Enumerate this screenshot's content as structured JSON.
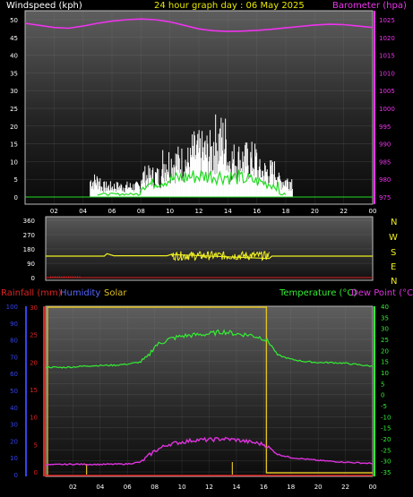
{
  "header": {
    "title": "24 hour graph day : 06 May 2025",
    "left_label": "Windspeed (kph)",
    "right_label": "Barometer (hpa)"
  },
  "bottom_header": {
    "rain_label": "Rainfall (mm)",
    "humidity_label": "Humidity",
    "solar_label": "Solar",
    "temp_label": "Temperature (°C)",
    "dew_label": "Dew Point (°C)"
  },
  "colors": {
    "wind": "#ffffff",
    "gust": "#22dd22",
    "barometer": "#ee33ee",
    "direction": "#eeee22",
    "rain": "#dd2222",
    "humidity": "#5566ff",
    "solar": "#e0c020",
    "temperature": "#33ee33",
    "dew": "#dd33dd",
    "title": "#e8e800",
    "axis_blue": "#3344ee"
  },
  "compass": [
    "N",
    "W",
    "S",
    "E",
    "N"
  ],
  "chart_data": [
    {
      "type": "line",
      "name": "wind-barometer",
      "x_ticks": [
        "02",
        "04",
        "06",
        "08",
        "10",
        "12",
        "14",
        "16",
        "18",
        "20",
        "22",
        "00"
      ],
      "y_left": {
        "label": "Windspeed (kph)",
        "ticks": [
          0,
          5,
          10,
          15,
          20,
          25,
          30,
          35,
          40,
          45,
          50
        ],
        "range": [
          0,
          50
        ]
      },
      "y_right": {
        "label": "Barometer (hpa)",
        "ticks": [
          975,
          980,
          985,
          990,
          995,
          1000,
          1005,
          1010,
          1015,
          1020,
          1025
        ],
        "range": [
          973,
          1029
        ]
      },
      "series": [
        {
          "key": "barometer",
          "x": [
            0,
            1,
            2,
            3,
            4,
            5,
            6,
            7,
            8,
            9,
            10,
            11,
            12,
            13,
            14,
            15,
            16,
            17,
            18,
            19,
            20,
            21,
            22,
            23,
            24
          ],
          "values": [
            1024,
            1023.4,
            1022.8,
            1022.6,
            1023.2,
            1024,
            1024.6,
            1025,
            1025.2,
            1025,
            1024.4,
            1023.4,
            1022.4,
            1021.9,
            1021.7,
            1021.8,
            1022,
            1022.3,
            1022.7,
            1023.1,
            1023.5,
            1023.7,
            1023.6,
            1023.2,
            1022.8
          ]
        }
      ]
    },
    {
      "type": "line",
      "name": "wind-direction",
      "y_ticks": [
        0,
        90,
        180,
        270,
        360
      ],
      "range": [
        0,
        360
      ],
      "series": [
        {
          "key": "direction",
          "x": [
            0,
            4.3,
            4.5,
            5,
            8.9,
            9.2,
            16.4,
            16.6,
            24
          ],
          "values": [
            135,
            135,
            150,
            137,
            137,
            145,
            120,
            135,
            135
          ]
        }
      ]
    },
    {
      "type": "line",
      "name": "temperature-humidity",
      "y_left_outer": {
        "label": "Humidity",
        "ticks": [
          0,
          10,
          20,
          30,
          40,
          50,
          60,
          70,
          80,
          90,
          100
        ],
        "range": [
          0,
          100
        ]
      },
      "y_left_inner": {
        "label": "Rainfall (mm)",
        "ticks": [
          0,
          5,
          10,
          15,
          20,
          25,
          30
        ],
        "range": [
          0,
          30
        ]
      },
      "y_right": {
        "label": "Temperature (°C)",
        "ticks": [
          -35,
          -30,
          -25,
          -20,
          -15,
          -10,
          -5,
          0,
          5,
          10,
          15,
          20,
          25,
          30,
          35,
          40
        ],
        "range": [
          -37,
          40
        ]
      },
      "series": [
        {
          "key": "temperature",
          "x": [
            0,
            1,
            2,
            3,
            4,
            5,
            6,
            7,
            7.5,
            8,
            9,
            10,
            11,
            12,
            13,
            14,
            15,
            16,
            16.5,
            17,
            18,
            19,
            20,
            21,
            22,
            23,
            24
          ],
          "values": [
            12.5,
            12.3,
            12.5,
            13,
            13.2,
            13.3,
            13.8,
            14.8,
            17,
            22,
            25,
            26.5,
            27,
            27.5,
            28.5,
            27.5,
            27,
            25.5,
            23,
            18,
            16,
            15,
            14.5,
            14.5,
            14.2,
            13.5,
            12.8
          ]
        },
        {
          "key": "dew",
          "x": [
            0,
            2,
            4,
            6,
            7,
            8,
            9,
            10,
            11,
            12,
            13,
            14,
            15,
            16,
            16.5,
            17,
            18,
            20,
            22,
            24
          ],
          "values": [
            -31.8,
            -31.5,
            -31.6,
            -31.4,
            -30.5,
            -25.5,
            -22.5,
            -21.5,
            -20.5,
            -20.5,
            -20,
            -20.5,
            -21.5,
            -22.5,
            -24.5,
            -27,
            -28.5,
            -29.8,
            -30.6,
            -31.2
          ]
        }
      ]
    }
  ]
}
